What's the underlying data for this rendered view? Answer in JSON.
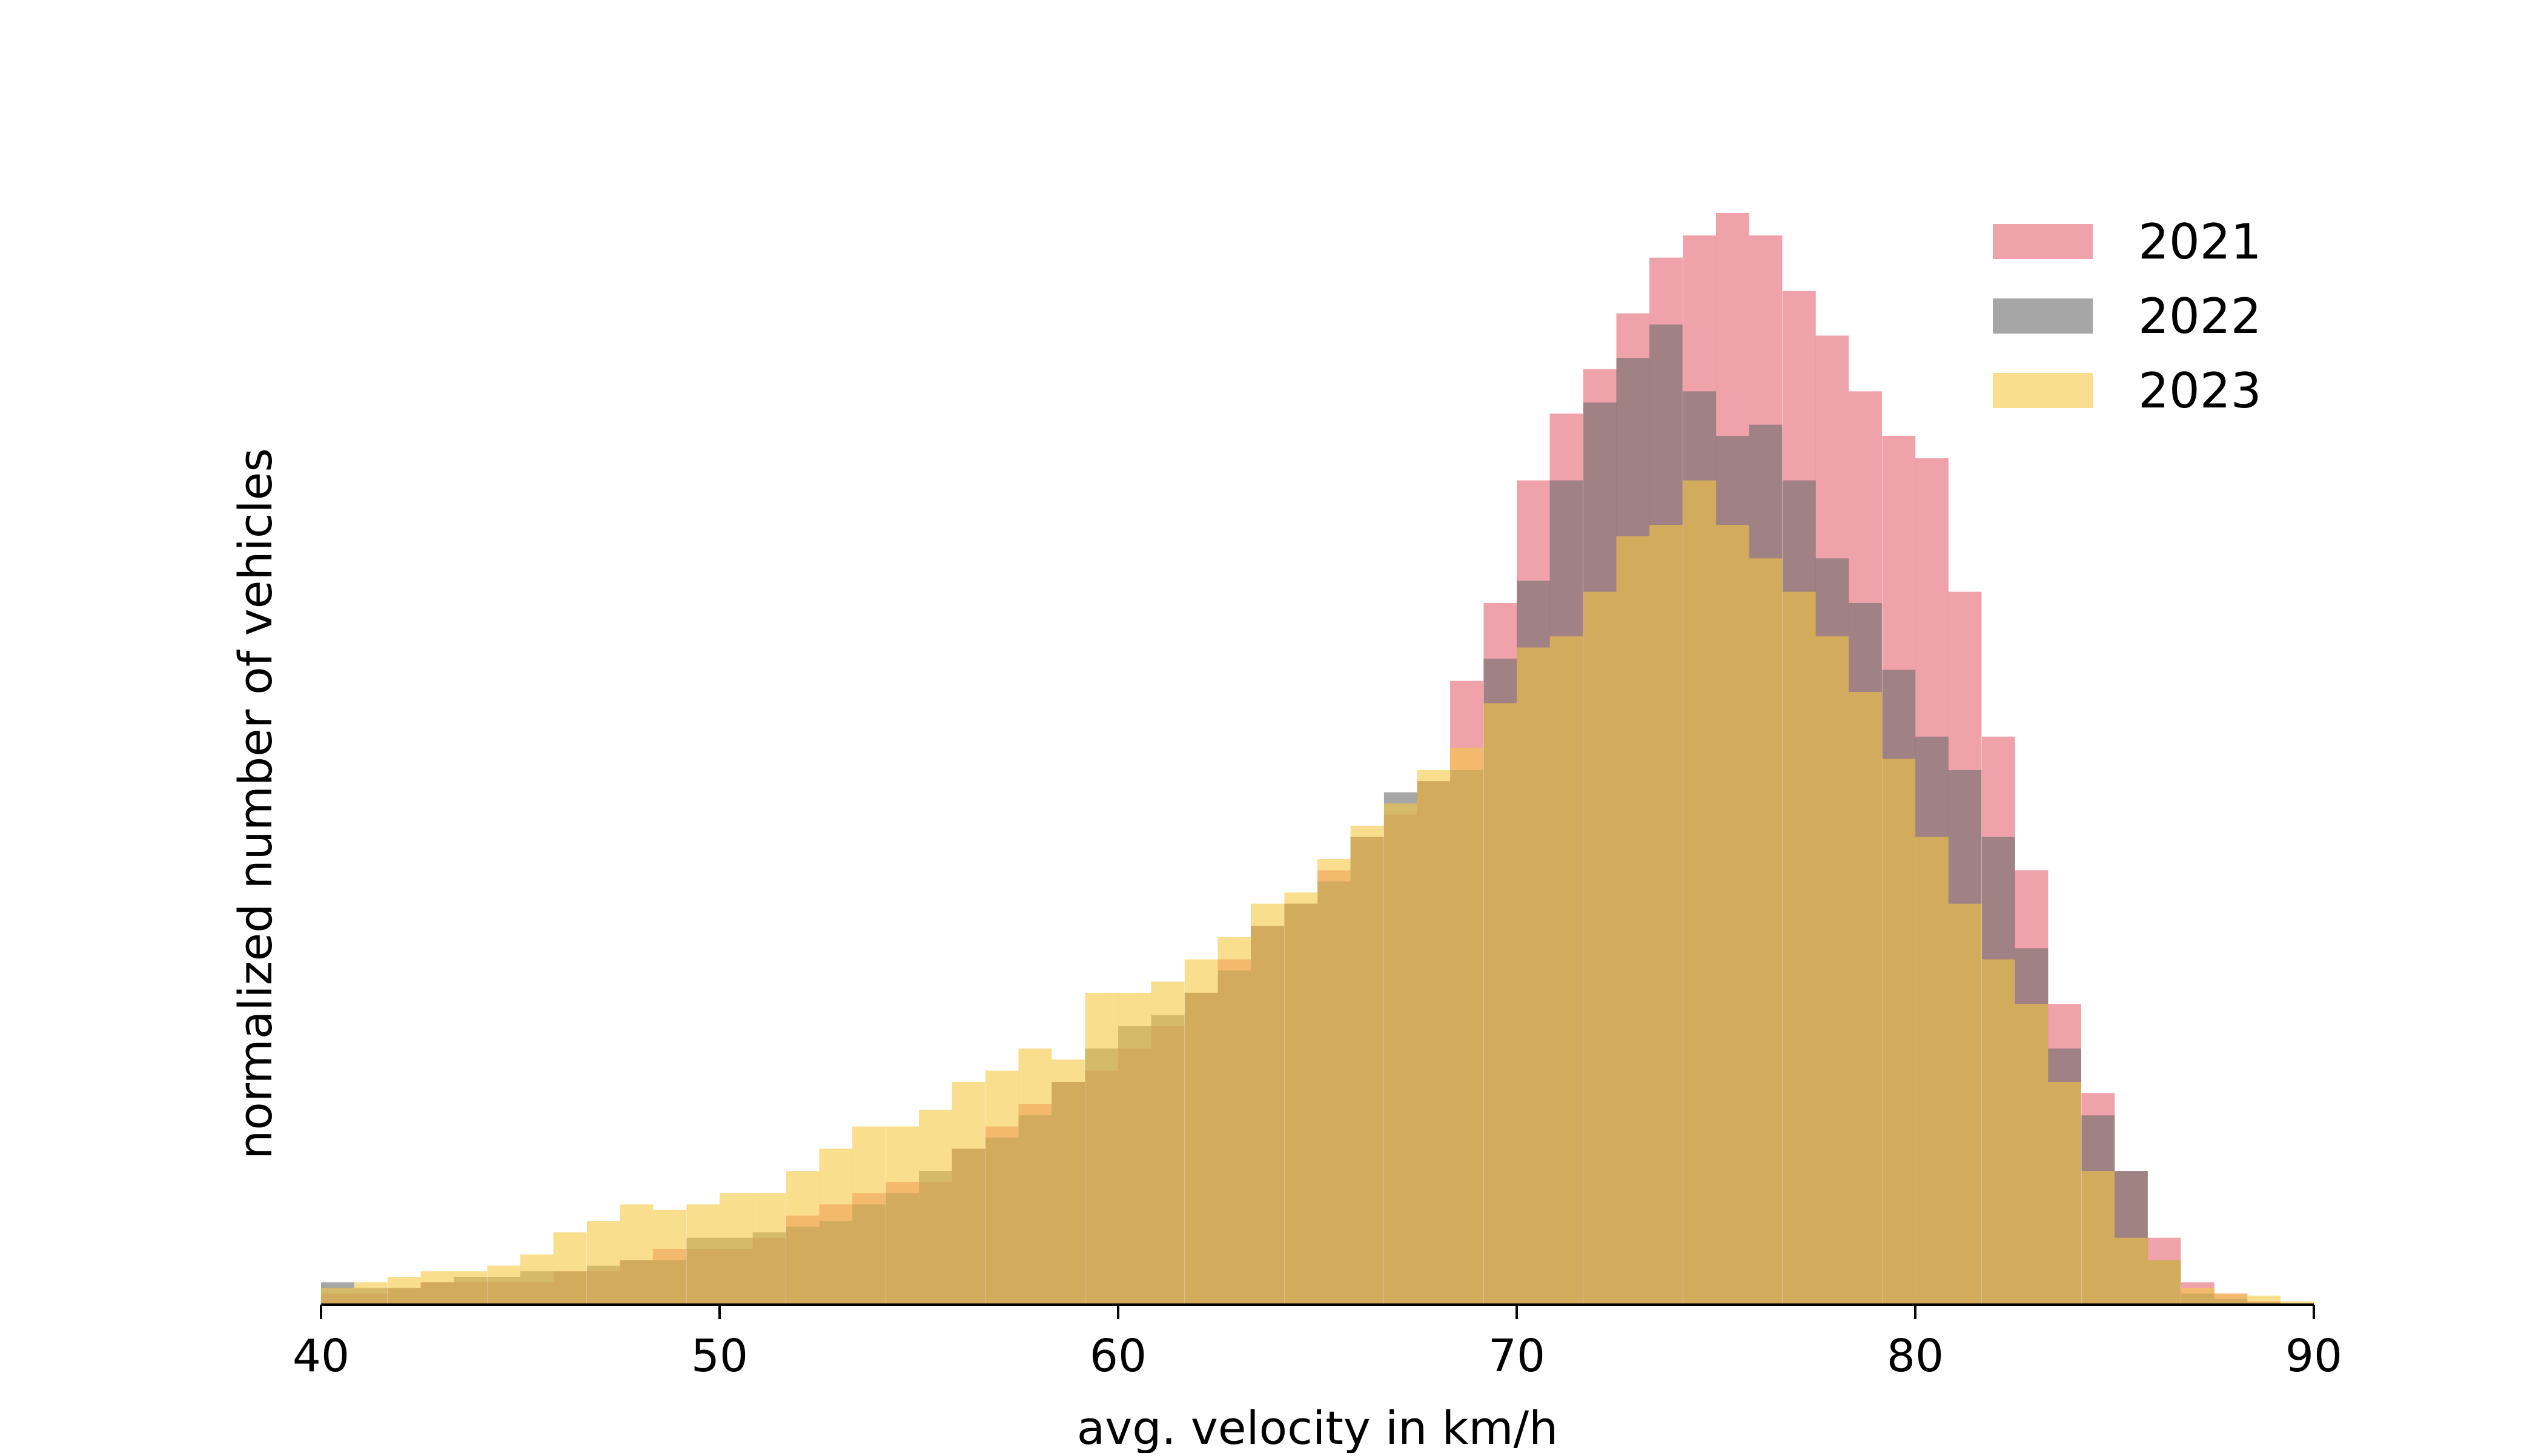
{
  "chart_data": {
    "type": "histogram",
    "title": "",
    "xlabel": "avg. velocity in km/h",
    "ylabel": "normalized number of vehicles",
    "xlim": [
      40,
      90
    ],
    "ylim": [
      0,
      1.03
    ],
    "bin_width": 0.8333,
    "y_ticks_visible": false,
    "grid": false,
    "legend_position": "top-right",
    "x_ticks": [
      "40",
      "50",
      "60",
      "70",
      "80",
      "90"
    ],
    "x": [
      40.0,
      40.83,
      41.67,
      42.5,
      43.33,
      44.17,
      45.0,
      45.83,
      46.67,
      47.5,
      48.33,
      49.17,
      50.0,
      50.83,
      51.67,
      52.5,
      53.33,
      54.17,
      55.0,
      55.83,
      56.67,
      57.5,
      58.33,
      59.17,
      60.0,
      60.83,
      61.67,
      62.5,
      63.33,
      64.17,
      65.0,
      65.83,
      66.67,
      67.5,
      68.33,
      69.17,
      70.0,
      70.83,
      71.67,
      72.5,
      73.33,
      74.17,
      75.0,
      75.83,
      76.67,
      77.5,
      78.33,
      79.17,
      80.0,
      80.83,
      81.67,
      82.5,
      83.33,
      84.17,
      85.0,
      85.83,
      86.67,
      87.5,
      88.33,
      89.17
    ],
    "series": [
      {
        "name": "2021",
        "color": "#e8707e",
        "opacity": 0.65,
        "values": [
          0.01,
          0.01,
          0.015,
          0.02,
          0.02,
          0.02,
          0.02,
          0.03,
          0.03,
          0.04,
          0.05,
          0.05,
          0.05,
          0.06,
          0.08,
          0.09,
          0.1,
          0.11,
          0.11,
          0.14,
          0.16,
          0.18,
          0.2,
          0.21,
          0.23,
          0.25,
          0.28,
          0.31,
          0.34,
          0.36,
          0.39,
          0.42,
          0.44,
          0.47,
          0.56,
          0.63,
          0.74,
          0.8,
          0.84,
          0.89,
          0.94,
          0.96,
          0.98,
          0.96,
          0.91,
          0.87,
          0.82,
          0.78,
          0.76,
          0.64,
          0.51,
          0.39,
          0.27,
          0.19,
          0.12,
          0.06,
          0.02,
          0.01,
          0.003,
          0.001
        ]
      },
      {
        "name": "2022",
        "color": "#6b6b6b",
        "opacity": 0.6,
        "values": [
          0.02,
          0.015,
          0.015,
          0.02,
          0.025,
          0.025,
          0.03,
          0.03,
          0.035,
          0.04,
          0.04,
          0.06,
          0.06,
          0.065,
          0.07,
          0.075,
          0.09,
          0.1,
          0.12,
          0.14,
          0.15,
          0.17,
          0.2,
          0.23,
          0.25,
          0.26,
          0.28,
          0.3,
          0.34,
          0.36,
          0.38,
          0.42,
          0.46,
          0.47,
          0.48,
          0.58,
          0.65,
          0.74,
          0.81,
          0.85,
          0.88,
          0.82,
          0.78,
          0.79,
          0.74,
          0.67,
          0.63,
          0.57,
          0.51,
          0.48,
          0.42,
          0.32,
          0.23,
          0.17,
          0.12,
          0.04,
          0.01,
          0.005,
          0.002,
          0.001
        ]
      },
      {
        "name": "2023",
        "color": "#f5c842",
        "opacity": 0.6,
        "values": [
          0.015,
          0.02,
          0.025,
          0.03,
          0.03,
          0.035,
          0.045,
          0.065,
          0.075,
          0.09,
          0.085,
          0.09,
          0.1,
          0.1,
          0.12,
          0.14,
          0.16,
          0.16,
          0.175,
          0.2,
          0.21,
          0.23,
          0.22,
          0.28,
          0.28,
          0.29,
          0.31,
          0.33,
          0.36,
          0.37,
          0.4,
          0.43,
          0.45,
          0.48,
          0.5,
          0.54,
          0.59,
          0.6,
          0.64,
          0.69,
          0.7,
          0.74,
          0.7,
          0.67,
          0.64,
          0.6,
          0.55,
          0.49,
          0.42,
          0.36,
          0.31,
          0.27,
          0.2,
          0.12,
          0.06,
          0.04,
          0.015,
          0.01,
          0.008,
          0.003
        ]
      }
    ]
  }
}
